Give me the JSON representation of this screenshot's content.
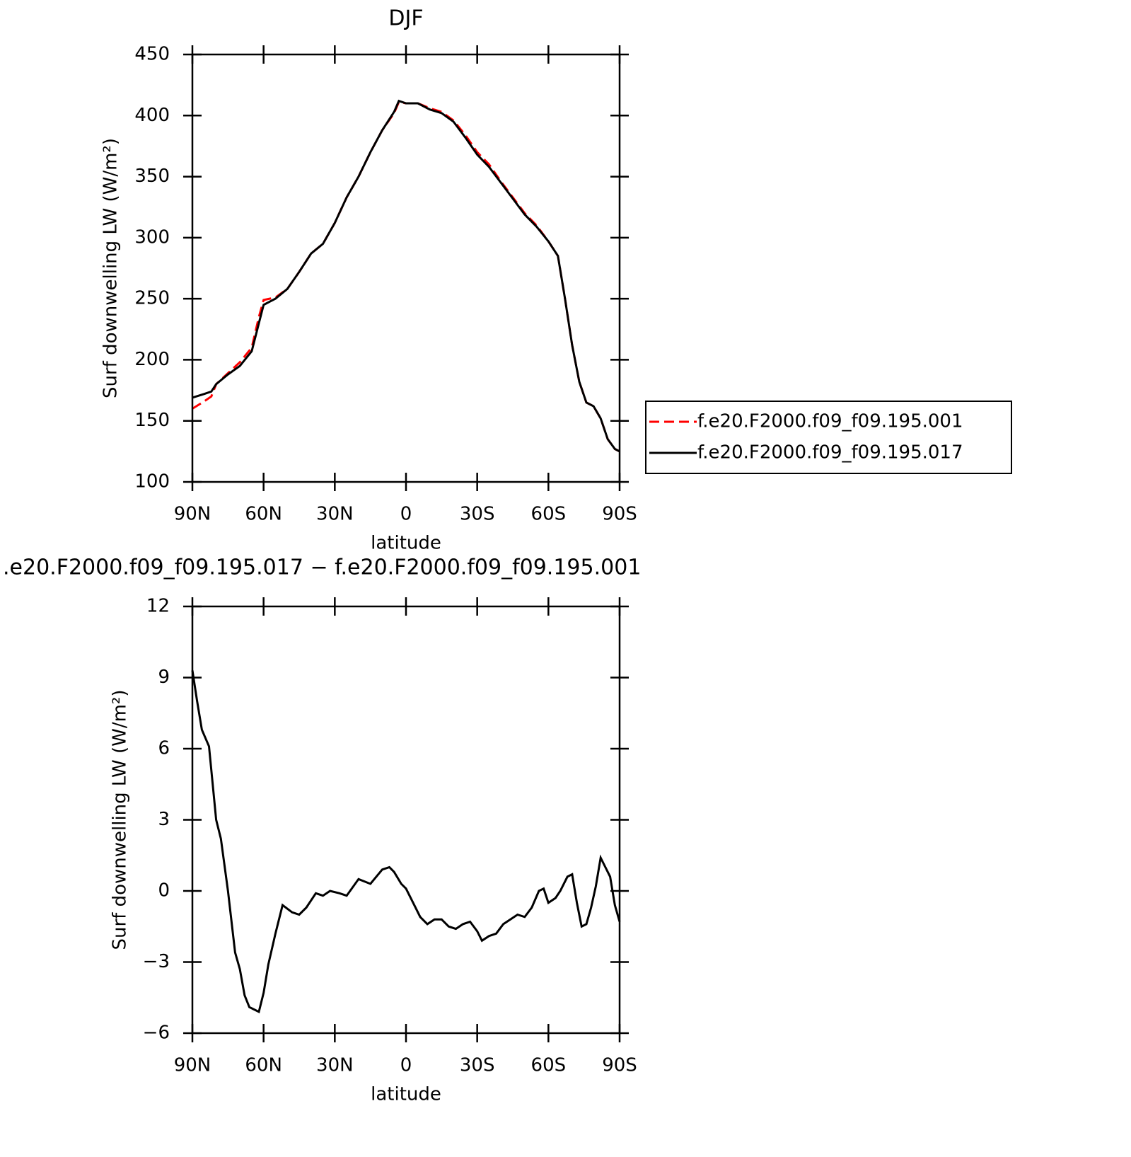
{
  "chart_data": [
    {
      "type": "line",
      "title": "DJF",
      "xlabel": "latitude",
      "ylabel": "Surf downwelling LW (W/m²)",
      "x": [
        90,
        85,
        82,
        80,
        75,
        70,
        65,
        62,
        60,
        55,
        50,
        45,
        40,
        35,
        30,
        25,
        20,
        15,
        10,
        5,
        3,
        0,
        -5,
        -10,
        -15,
        -20,
        -25,
        -30,
        -35,
        -40,
        -45,
        -50,
        -55,
        -60,
        -64,
        -67,
        -70,
        -73,
        -76,
        -79,
        -82,
        -85,
        -88,
        -90
      ],
      "series": [
        {
          "name": "f.e20.F2000.f09_f09.195.001",
          "color": "#ff0000",
          "line_style": "dashed",
          "values": [
            160,
            166,
            170,
            180,
            189,
            198,
            210,
            235,
            249,
            251,
            258,
            272,
            287,
            295,
            312,
            333,
            350,
            370,
            388,
            402,
            411,
            410,
            410,
            406,
            403,
            396,
            384,
            370,
            360,
            346,
            333,
            320,
            310,
            297,
            285,
            250,
            212,
            182,
            165,
            162,
            152,
            135,
            127,
            125
          ]
        },
        {
          "name": "f.e20.F2000.f09_f09.195.017",
          "color": "#000000",
          "line_style": "solid",
          "values": [
            169,
            172,
            174,
            180,
            188,
            195,
            207,
            230,
            245,
            250,
            258,
            272,
            287,
            295,
            312,
            333,
            350,
            370,
            388,
            403,
            412,
            410,
            410,
            405,
            402,
            395,
            382,
            368,
            358,
            345,
            332,
            319,
            309,
            297,
            285,
            250,
            212,
            182,
            165,
            162,
            152,
            135,
            127,
            125
          ]
        }
      ],
      "xlim": [
        90,
        -90
      ],
      "xticks": [
        {
          "value": 90,
          "label": "90N"
        },
        {
          "value": 60,
          "label": "60N"
        },
        {
          "value": 30,
          "label": "30N"
        },
        0,
        {
          "value": -30,
          "label": "30S"
        },
        {
          "value": -60,
          "label": "60S"
        },
        {
          "value": -90,
          "label": "90S"
        }
      ],
      "ylim": [
        100,
        450
      ],
      "yticks": [
        100,
        150,
        200,
        250,
        300,
        350,
        400,
        450
      ],
      "legend": "right"
    },
    {
      "type": "line",
      "title": ".e20.F2000.f09_f09.195.017 − f.e20.F2000.f09_f09.195.001",
      "xlabel": "latitude",
      "ylabel": "Surf downwelling LW (W/m²)",
      "x": [
        90,
        88,
        86,
        83,
        80,
        78,
        75,
        72,
        70,
        68,
        66,
        64,
        62,
        60,
        58,
        55,
        52,
        48,
        45,
        42,
        38,
        35,
        32,
        28,
        25,
        20,
        15,
        10,
        7,
        5,
        2,
        0,
        -3,
        -6,
        -9,
        -12,
        -15,
        -18,
        -21,
        -24,
        -27,
        -30,
        -32,
        -35,
        -38,
        -41,
        -44,
        -47,
        -50,
        -53,
        -56,
        -58,
        -60,
        -63,
        -65,
        -68,
        -70,
        -72,
        -74,
        -76,
        -78,
        -80,
        -82,
        -84,
        -86,
        -88,
        -90
      ],
      "series": [
        {
          "color": "#000000",
          "values": [
            9.3,
            8,
            6.8,
            6.1,
            3.0,
            2.2,
            0,
            -2.6,
            -3.3,
            -4.4,
            -4.9,
            -5,
            -5.1,
            -4.3,
            -3.1,
            -1.8,
            -0.6,
            -0.9,
            -1.0,
            -0.7,
            -0.1,
            -0.2,
            0,
            -0.1,
            -0.2,
            0.5,
            0.3,
            0.9,
            1.0,
            0.8,
            0.3,
            0.1,
            -0.5,
            -1.1,
            -1.4,
            -1.2,
            -1.2,
            -1.5,
            -1.6,
            -1.4,
            -1.3,
            -1.7,
            -2.1,
            -1.9,
            -1.8,
            -1.4,
            -1.2,
            -1.0,
            -1.1,
            -0.7,
            0,
            0.1,
            -0.5,
            -0.3,
            0,
            0.6,
            0.7,
            -0.5,
            -1.5,
            -1.4,
            -0.7,
            0.2,
            1.4,
            1.0,
            0.6,
            -0.6,
            -1.3
          ]
        }
      ],
      "xlim": [
        90,
        -90
      ],
      "xticks": [
        {
          "value": 90,
          "label": "90N"
        },
        {
          "value": 60,
          "label": "60N"
        },
        {
          "value": 30,
          "label": "30N"
        },
        0,
        {
          "value": -30,
          "label": "30S"
        },
        {
          "value": -60,
          "label": "60S"
        },
        {
          "value": -90,
          "label": "90S"
        }
      ],
      "ylim": [
        -6,
        12
      ],
      "yticks": [
        {
          "value": -6,
          "label": "−6"
        },
        {
          "value": -3,
          "label": "−3"
        },
        0,
        3,
        6,
        9,
        12
      ]
    }
  ]
}
